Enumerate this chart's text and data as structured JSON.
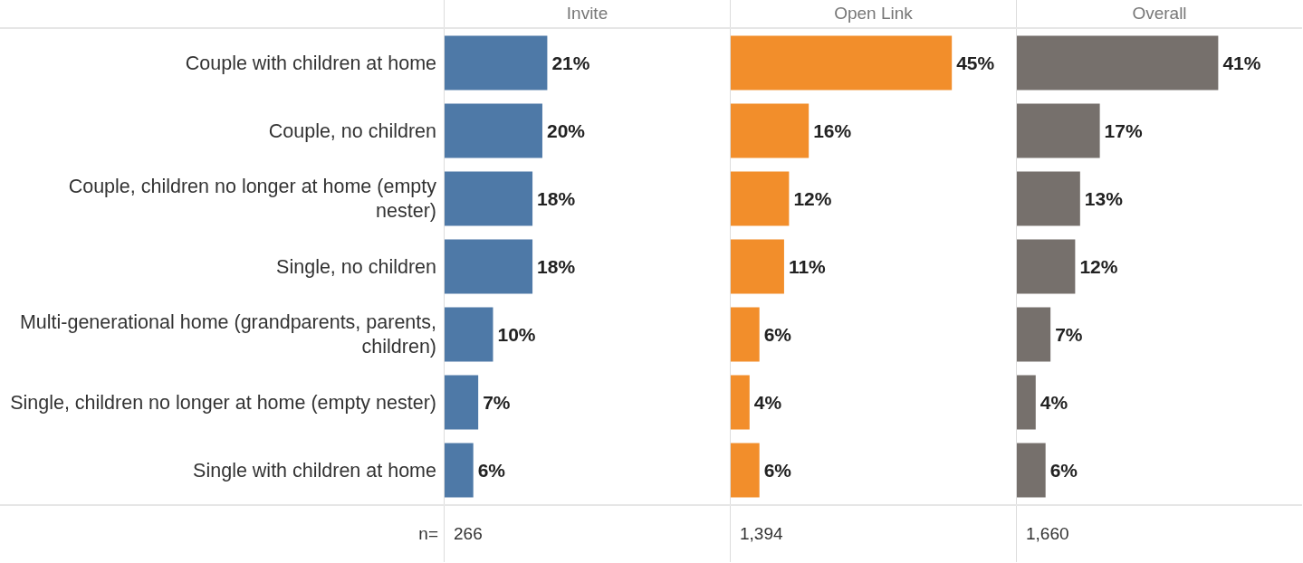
{
  "chart_data": [
    {
      "type": "bar",
      "orientation": "horizontal",
      "title": "Invite",
      "categories": [
        "Couple with children at home",
        "Couple, no children",
        "Couple, children no longer at home (empty nester)",
        "Single, no children",
        "Multi-generational home (grandparents, parents, children)",
        "Single, children no longer at home (empty nester)",
        "Single with children at home"
      ],
      "values": [
        21,
        20,
        18,
        18,
        10,
        7,
        6
      ],
      "value_labels": [
        "21%",
        "20%",
        "18%",
        "18%",
        "10%",
        "7%",
        "6%"
      ],
      "color": "#4e79a7",
      "xlim": [
        0,
        58
      ],
      "tick_labels": "y",
      "annotations": [
        "n=",
        "266"
      ]
    },
    {
      "type": "bar",
      "orientation": "horizontal",
      "title": "Open Link",
      "categories": [
        null,
        null,
        null,
        null,
        null,
        null,
        null
      ],
      "values": [
        45,
        16,
        12,
        11,
        6,
        4,
        6
      ],
      "value_labels": [
        "45%",
        "16%",
        "12%",
        "11%",
        "6%",
        "4%",
        "6%"
      ],
      "color": "#f28e2b",
      "xlim": [
        0,
        58
      ],
      "tick_labels": false,
      "annotations": [
        "1,394"
      ]
    },
    {
      "type": "bar",
      "orientation": "horizontal",
      "title": "Overall",
      "categories": [
        null,
        null,
        null,
        null,
        null,
        null,
        null
      ],
      "values": [
        41,
        17,
        13,
        12,
        7,
        4,
        6
      ],
      "value_labels": [
        "41%",
        "17%",
        "13%",
        "12%",
        "7%",
        "4%",
        "6%"
      ],
      "color": "#76706c",
      "xlim": [
        0,
        58
      ],
      "tick_labels": false,
      "annotations": [
        "1,660"
      ]
    }
  ]
}
